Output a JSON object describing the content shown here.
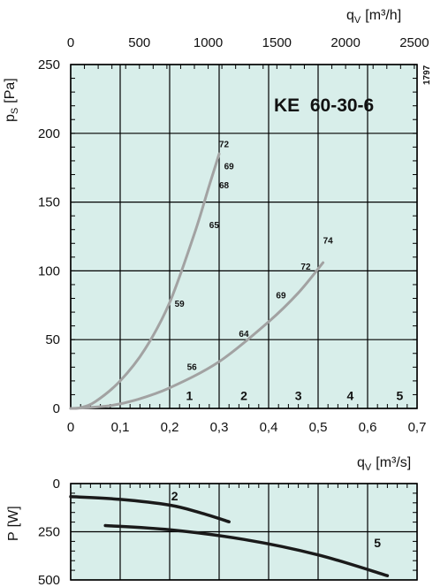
{
  "chart_data": [
    {
      "type": "line",
      "title": "KE  60-30-6",
      "code": "1797",
      "xlabel_bottom": "",
      "xlabel_top_main": "q",
      "xlabel_top_sub": "V",
      "xlabel_top_unit": "[m³/h]",
      "ylabel_main": "p",
      "ylabel_sub": "S",
      "ylabel_unit": "[Pa]",
      "xlim": [
        0,
        0.7
      ],
      "ylim": [
        0,
        250
      ],
      "x_ticks": [
        0,
        0.1,
        0.2,
        0.3,
        0.4,
        0.5,
        0.6,
        0.7
      ],
      "x_tick_labels": [
        "0",
        "0,1",
        "0,2",
        "0,3",
        "0,4",
        "0,5",
        "0,6",
        "0,7"
      ],
      "y_ticks": [
        0,
        50,
        100,
        150,
        200,
        250
      ],
      "y_tick_labels": [
        "0",
        "50",
        "100",
        "150",
        "200",
        "250"
      ],
      "top_ticks": [
        0,
        500,
        1000,
        1500,
        2000,
        2500
      ],
      "top_tick_labels": [
        "0",
        "500",
        "1000",
        "1500",
        "2000",
        "2500"
      ],
      "grid": true,
      "background": "#d8eeea",
      "line_color": "#a2a2a2",
      "series": [
        {
          "x": [
            0,
            0.02,
            0.05,
            0.1,
            0.15,
            0.2,
            0.25,
            0.28,
            0.3
          ],
          "values": [
            0,
            0.5,
            5,
            20,
            43,
            77,
            127,
            162,
            185
          ]
        },
        {
          "x": [
            0,
            0.03,
            0.08,
            0.13,
            0.2,
            0.3,
            0.4,
            0.46,
            0.51
          ],
          "values": [
            0,
            0.5,
            2,
            6,
            15,
            34,
            63,
            84,
            106
          ]
        }
      ],
      "point_labels": [
        {
          "text": "72",
          "x": 0.3,
          "y": 190
        },
        {
          "text": "69",
          "x": 0.31,
          "y": 174
        },
        {
          "text": "68",
          "x": 0.3,
          "y": 160
        },
        {
          "text": "65",
          "x": 0.28,
          "y": 131
        },
        {
          "text": "59",
          "x": 0.21,
          "y": 74
        },
        {
          "text": "56",
          "x": 0.235,
          "y": 28
        },
        {
          "text": "64",
          "x": 0.34,
          "y": 52
        },
        {
          "text": "69",
          "x": 0.415,
          "y": 80
        },
        {
          "text": "72",
          "x": 0.465,
          "y": 101
        },
        {
          "text": "74",
          "x": 0.51,
          "y": 120
        }
      ],
      "zone_labels": [
        {
          "text": "1",
          "x": 0.24,
          "y": 6
        },
        {
          "text": "2",
          "x": 0.35,
          "y": 6
        },
        {
          "text": "3",
          "x": 0.46,
          "y": 6
        },
        {
          "text": "4",
          "x": 0.565,
          "y": 6
        },
        {
          "text": "5",
          "x": 0.665,
          "y": 6
        }
      ]
    },
    {
      "type": "line",
      "xlabel_main": "q",
      "xlabel_sub": "V",
      "xlabel_unit": "[m³/s]",
      "ylabel_main": "P",
      "ylabel_unit": "[W]",
      "xlim": [
        0,
        0.7
      ],
      "ylim": [
        0,
        500
      ],
      "y_inverted": true,
      "y_ticks": [
        0,
        250,
        500
      ],
      "y_tick_labels": [
        "0",
        "250",
        "500"
      ],
      "grid": true,
      "background": "#d8eeea",
      "line_color": "#1a1a1a",
      "series": [
        {
          "name": "2",
          "x": [
            0,
            0.1,
            0.2,
            0.26,
            0.32
          ],
          "values": [
            68,
            82,
            112,
            150,
            198
          ]
        },
        {
          "name": "5",
          "x": [
            0.07,
            0.2,
            0.35,
            0.5,
            0.64
          ],
          "values": [
            218,
            240,
            290,
            370,
            478
          ]
        }
      ],
      "series_labels": [
        {
          "text": "2",
          "x": 0.21,
          "y": 88
        },
        {
          "text": "5",
          "x": 0.62,
          "y": 330
        }
      ]
    }
  ]
}
